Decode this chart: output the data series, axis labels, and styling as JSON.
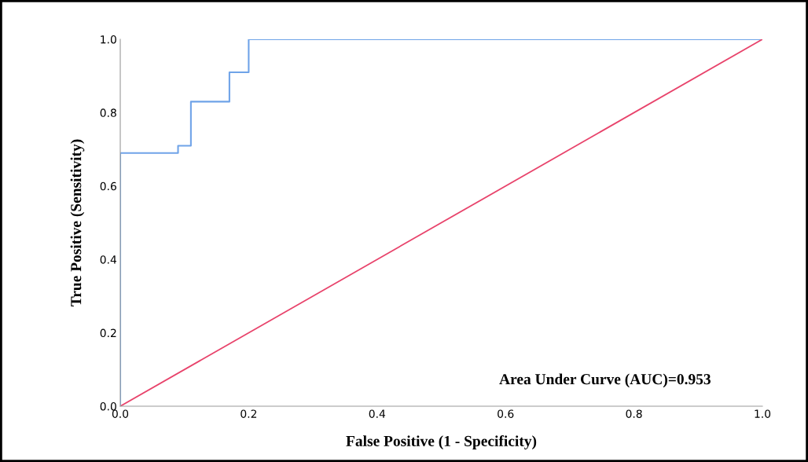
{
  "chart_data": {
    "type": "step",
    "xlabel": "False Positive (1 - Specificity)",
    "ylabel": "True Positive (Sensitivity)",
    "series": [
      {
        "color": "#6fa3e8",
        "x": [
          0,
          0,
          0.09,
          0.11,
          0.17,
          0.2,
          1
        ],
        "values": [
          0,
          0.69,
          0.71,
          0.83,
          0.91,
          1.0,
          1.0
        ]
      },
      {
        "type": "line",
        "color": "#e8436b",
        "x": [
          0,
          1
        ],
        "values": [
          0,
          1
        ]
      }
    ],
    "xlim": [
      0,
      1
    ],
    "ylim": [
      0,
      1
    ],
    "xticks": [
      {
        "value": 0,
        "label": "0.0"
      },
      0.2,
      0.4,
      0.6,
      0.8,
      {
        "value": 1,
        "label": "1.0"
      }
    ],
    "yticks": [
      {
        "value": 0,
        "label": "0.0"
      },
      0.2,
      0.4,
      0.6,
      0.8,
      {
        "value": 1,
        "label": "1.0"
      }
    ],
    "annotations": [
      "Area Under Curve (AUC)=0.953"
    ],
    "grid": false,
    "legend": false
  }
}
